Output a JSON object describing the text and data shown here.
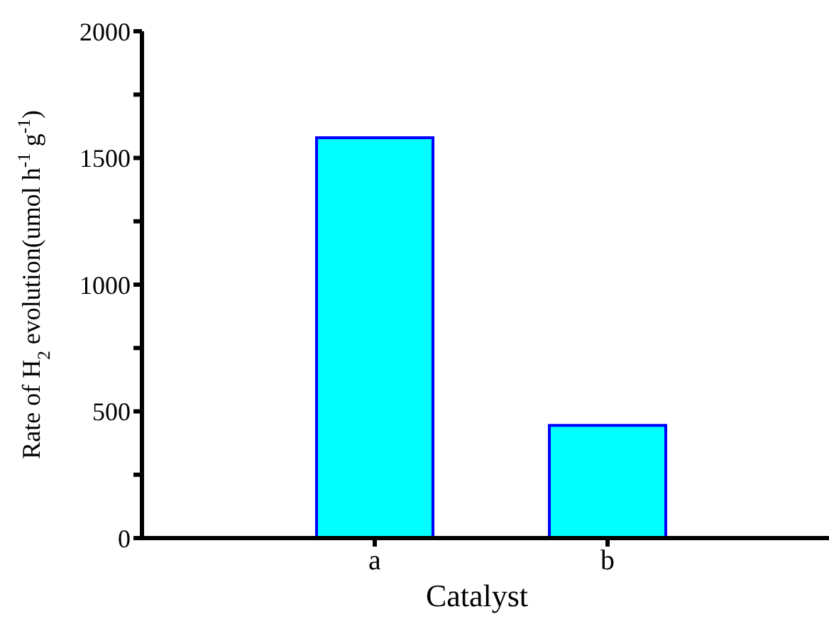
{
  "chart_data": {
    "type": "bar",
    "xlabel": "Catalyst",
    "ylabel": "Rate of H$_{2}$ evolution(umol h$^{-1}$ g$^{-1}$)",
    "categories": [
      "a",
      "b"
    ],
    "values": [
      1580,
      445
    ],
    "color": "#00ffff",
    "ylim": [
      0,
      2000
    ],
    "yticks": [
      0,
      {
        "value": 250,
        "label": null
      },
      500,
      {
        "value": 750,
        "label": null
      },
      1000,
      {
        "value": 1250,
        "label": null
      },
      1500,
      {
        "value": 1750,
        "label": null
      },
      2000
    ],
    "grid": false,
    "legend": false
  }
}
